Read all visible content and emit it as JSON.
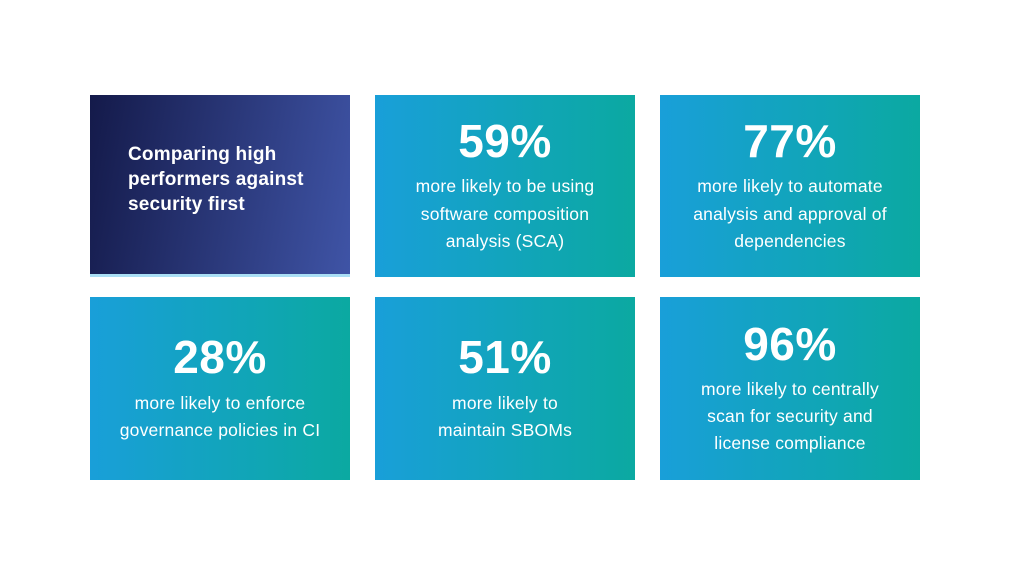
{
  "page": {
    "background": "#ffffff"
  },
  "intro_card": {
    "title": "Comparing high\nperformers against\nsecurity first",
    "gradient_from": "#141a4a",
    "gradient_to": "#3f54a6",
    "accent_color": "#aadff5",
    "text_color": "#ffffff"
  },
  "stat_cards": [
    {
      "percent": "59%",
      "description": "more likely to be using\nsoftware composition\nanalysis (SCA)"
    },
    {
      "percent": "77%",
      "description": "more likely to automate\nanalysis and approval of\ndependencies"
    },
    {
      "percent": "28%",
      "description": "more likely to enforce\ngovernance policies in CI"
    },
    {
      "percent": "51%",
      "description": "more likely to\nmaintain SBOMs"
    },
    {
      "percent": "96%",
      "description": "more likely to centrally\nscan for security and\nlicense compliance"
    }
  ],
  "colors": {
    "stat_gradient_from": "#199fd9",
    "stat_gradient_to": "#0ba9a1",
    "text": "#ffffff"
  }
}
